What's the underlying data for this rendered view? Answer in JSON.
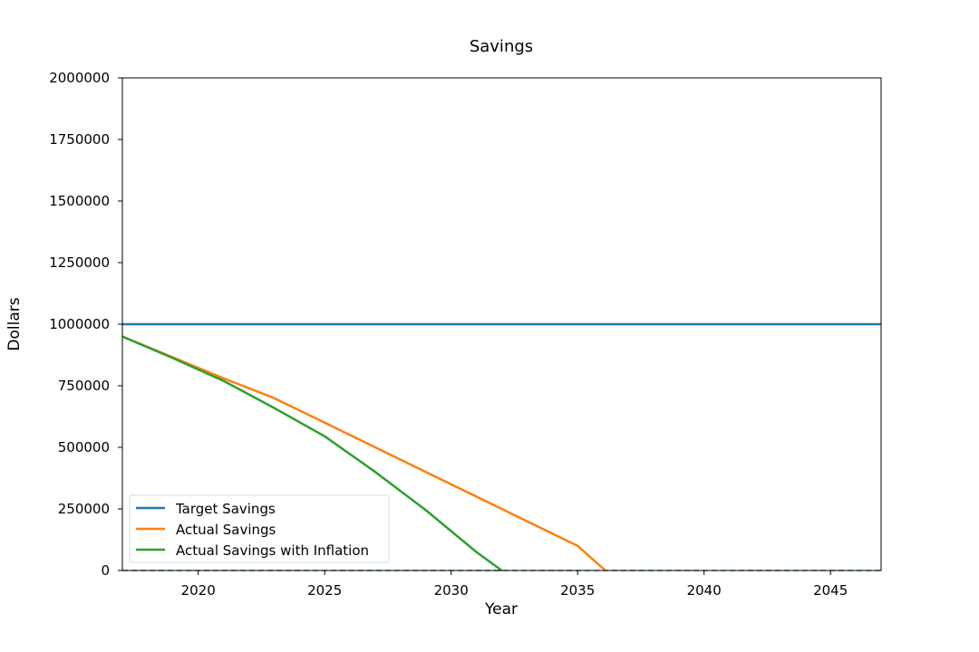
{
  "chart_data": {
    "type": "line",
    "title": "Savings",
    "xlabel": "Year",
    "ylabel": "Dollars",
    "xlim": [
      2017,
      2047
    ],
    "ylim": [
      0,
      2000000
    ],
    "x_ticks": [
      2020,
      2025,
      2030,
      2035,
      2040,
      2045
    ],
    "y_ticks": [
      0,
      250000,
      500000,
      750000,
      1000000,
      1250000,
      1500000,
      1750000,
      2000000
    ],
    "x_tick_labels": [
      "2020",
      "2025",
      "2030",
      "2035",
      "2040",
      "2045"
    ],
    "y_tick_labels": [
      "0",
      "250000",
      "500000",
      "750000",
      "1000000",
      "1250000",
      "1500000",
      "1750000",
      "2000000"
    ],
    "grid": false,
    "legend_position": "lower-left",
    "series": [
      {
        "name": "Target Savings",
        "color": "#1f77b4",
        "style": "solid",
        "x": [
          2017,
          2047
        ],
        "y": [
          1000000,
          1000000
        ]
      },
      {
        "name": "Actual Savings",
        "color": "#ff7f0e",
        "style": "solid",
        "x": [
          2017,
          2019,
          2021,
          2023,
          2025,
          2027,
          2029,
          2031,
          2033,
          2035,
          2036.1
        ],
        "y": [
          950000,
          865000,
          780000,
          700000,
          600000,
          500000,
          400000,
          300000,
          200000,
          100000,
          0
        ]
      },
      {
        "name": "Actual Savings with Inflation",
        "color": "#2ca02c",
        "style": "solid",
        "x": [
          2017,
          2019,
          2021,
          2023,
          2025,
          2027,
          2029,
          2031,
          2032
        ],
        "y": [
          950000,
          862000,
          770000,
          660000,
          545000,
          400000,
          245000,
          75000,
          0
        ]
      }
    ],
    "reference_lines": [
      {
        "color": "#1f77b4",
        "style": "dashed",
        "y": 0
      }
    ]
  }
}
